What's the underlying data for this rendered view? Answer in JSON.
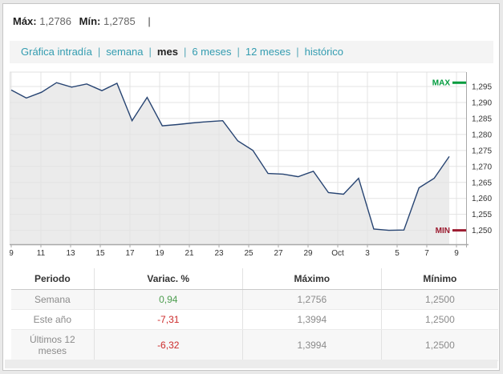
{
  "header": {
    "max_label": "Máx:",
    "max_value": "1,2786",
    "min_label": "Mín:",
    "min_value": "1,2785",
    "separator": "|"
  },
  "tabs": {
    "separator": "|",
    "active": "mes",
    "items": [
      {
        "label": "Gráfica intradía"
      },
      {
        "label": "semana"
      },
      {
        "label": "mes"
      },
      {
        "label": "6 meses"
      },
      {
        "label": "12 meses"
      },
      {
        "label": "histórico"
      }
    ]
  },
  "chart_data": {
    "type": "area",
    "title": "",
    "xlabel": "",
    "ylabel": "",
    "grid": true,
    "legend": false,
    "ylim": [
      1.2457,
      1.2995
    ],
    "x_tick_labels": [
      "9",
      "11",
      "13",
      "15",
      "17",
      "19",
      "21",
      "23",
      "25",
      "27",
      "29",
      "Oct",
      "3",
      "5",
      "7",
      "9"
    ],
    "y_ticks": [
      {
        "value": 1.295,
        "label": "1,295"
      },
      {
        "value": 1.29,
        "label": "1,290"
      },
      {
        "value": 1.285,
        "label": "1,285"
      },
      {
        "value": 1.28,
        "label": "1,280"
      },
      {
        "value": 1.275,
        "label": "1,275"
      },
      {
        "value": 1.27,
        "label": "1,270"
      },
      {
        "value": 1.265,
        "label": "1,265"
      },
      {
        "value": 1.26,
        "label": "1,260"
      },
      {
        "value": 1.255,
        "label": "1,255"
      },
      {
        "value": 1.25,
        "label": "1,250"
      }
    ],
    "values": [
      1.2939,
      1.2914,
      1.2932,
      1.2962,
      1.2948,
      1.2958,
      1.2937,
      1.296,
      1.2843,
      1.2916,
      1.2827,
      1.2831,
      1.2836,
      1.284,
      1.2843,
      1.278,
      1.275,
      1.2678,
      1.2676,
      1.2668,
      1.2685,
      1.2618,
      1.2613,
      1.2663,
      1.2504,
      1.25,
      1.2501,
      1.2633,
      1.2663,
      1.2731
    ],
    "line_color": "#274472",
    "fill_color": "#ebebeb",
    "grid_color": "#e3e3e3",
    "axis_color": "#a8a8a8",
    "label_color": "#333333",
    "max_marker": {
      "label": "MAX",
      "value": 1.2962,
      "color": "#009b3d"
    },
    "min_marker": {
      "label": "MIN",
      "value": 1.25,
      "color": "#9c1b30"
    }
  },
  "table": {
    "headers": [
      "Periodo",
      "Variac. %",
      "Máximo",
      "Mínimo"
    ],
    "rows": [
      {
        "periodo": "Semana",
        "variacion": "0,94",
        "trend": "up",
        "maximo": "1,2756",
        "minimo": "1,2500"
      },
      {
        "periodo": "Este año",
        "variacion": "-7,31",
        "trend": "down",
        "maximo": "1,3994",
        "minimo": "1,2500"
      },
      {
        "periodo": "Últimos 12 meses",
        "variacion": "-6,32",
        "trend": "down",
        "maximo": "1,3994",
        "minimo": "1,2500"
      }
    ]
  },
  "colors": {
    "accent_teal": "#339cb0",
    "positive_green": "#4e9e50",
    "negative_red": "#cc2a2a",
    "max_green": "#009b3d",
    "min_red": "#9c1b30"
  }
}
